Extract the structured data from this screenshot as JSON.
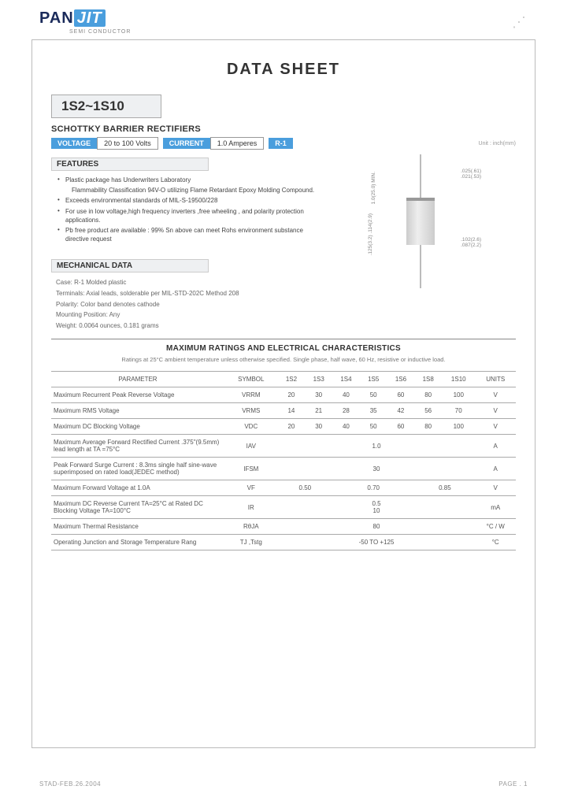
{
  "logo": {
    "pan": "PAN",
    "jit": "JIT",
    "sub": "SEMI CONDUCTOR"
  },
  "title": "DATA  SHEET",
  "part": "1S2~1S10",
  "subtitle": "SCHOTTKY BARRIER RECTIFIERS",
  "badges": {
    "voltage_label": "VOLTAGE",
    "voltage_value": "20 to 100 Volts",
    "current_label": "CURRENT",
    "current_value": "1.0 Amperes",
    "pkg": "R-1",
    "unit_note": "Unit : inch(mm)"
  },
  "features_header": "FEATURES",
  "features": [
    "Plastic package has Underwriters Laboratory",
    "Flammability Classification 94V-O utilizing Flame Retardant Epoxy Molding Compound.",
    "Exceeds environmental standards of MIL-S-19500/228",
    "For use in low voltage,high frequency inverters ,free wheeling , and polarity protection applications.",
    "Pb free product are available : 99% Sn above can meet Rohs environment substance directive request"
  ],
  "mech_header": "MECHANICAL DATA",
  "mech": [
    "Case: R-1  Molded plastic",
    "Terminals: Axial leads, solderable per MIL-STD-202C Method 208",
    "Polarity: Color band denotes cathode",
    "Mounting Position: Any",
    "Weight: 0.0064 ounces, 0.181 grams"
  ],
  "diagram_dims": {
    "d1": ".025(.61)",
    "d2": ".021(.53)",
    "d3": ".102(2.6)",
    "d4": ".087(2.2)",
    "d5": "1.0(25.0) MIN.",
    "d6": ".125(3.2)",
    "d7": ".114(2.9)"
  },
  "ratings_title": "MAXIMUM RATINGS AND ELECTRICAL CHARACTERISTICS",
  "ratings_note": "Ratings at 25°C ambient  temperature unless otherwise specified.  Single phase, half wave, 60 Hz, resistive or inductive load.",
  "table": {
    "head": [
      "PARAMETER",
      "SYMBOL",
      "1S2",
      "1S3",
      "1S4",
      "1S5",
      "1S6",
      "1S8",
      "1S10",
      "UNITS"
    ],
    "rows": [
      {
        "param": "Maximum Recurrent Peak Reverse Voltage",
        "symbol": "VRRM",
        "vals": [
          "20",
          "30",
          "40",
          "50",
          "60",
          "80",
          "100"
        ],
        "unit": "V"
      },
      {
        "param": "Maximum RMS Voltage",
        "symbol": "VRMS",
        "vals": [
          "14",
          "21",
          "28",
          "35",
          "42",
          "56",
          "70"
        ],
        "unit": "V"
      },
      {
        "param": "Maximum DC Blocking Voltage",
        "symbol": "VDC",
        "vals": [
          "20",
          "30",
          "40",
          "50",
          "60",
          "80",
          "100"
        ],
        "unit": "V"
      },
      {
        "param": "Maximum Average Forward Rectified Current .375\"(9.5mm) lead length at TA =75°C",
        "symbol": "IAV",
        "span": "1.0",
        "unit": "A"
      },
      {
        "param": "Peak Forward Surge Current : 8.3ms single half sine-wave superimposed on rated load(JEDEC  method)",
        "symbol": "IFSM",
        "span": "30",
        "unit": "A"
      },
      {
        "param": "Maximum Forward Voltage at 1.0A",
        "symbol": "VF",
        "groups": [
          "0.50",
          "0.70",
          "0.85"
        ],
        "colspans": [
          2,
          3,
          2
        ],
        "unit": "V"
      },
      {
        "param": "Maximum DC Reverse Current TA=25°C at Rated DC Blocking Voltage TA=100°C",
        "symbol": "IR",
        "stack": [
          "0.5",
          "10"
        ],
        "unit": "mA"
      },
      {
        "param": "Maximum Thermal Resistance",
        "symbol": "RθJA",
        "span": "80",
        "unit": "°C / W"
      },
      {
        "param": "Operating Junction and Storage Temperature Rang",
        "symbol": "TJ ,Tstg",
        "span": "-50 TO +125",
        "unit": "°C"
      }
    ]
  },
  "footer": {
    "date": "STAD-FEB.26.2004",
    "page": "PAGE . 1"
  }
}
